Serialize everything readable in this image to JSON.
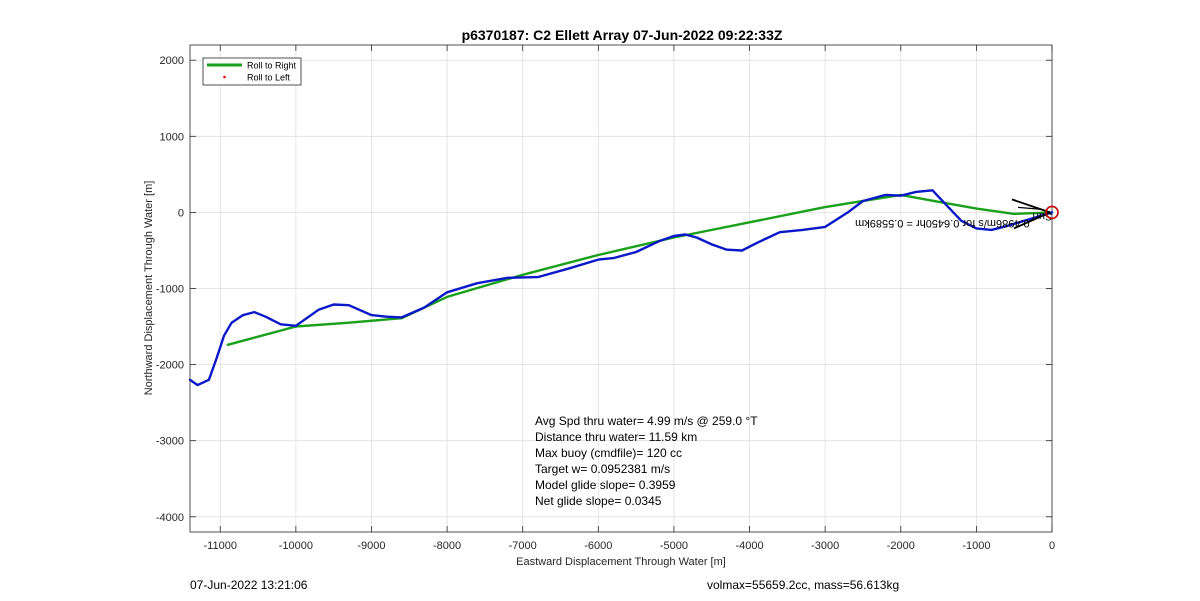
{
  "chart_data": {
    "type": "line",
    "title": "p6370187: C2 Ellett Array 07-Jun-2022 09:22:33Z",
    "xlabel": "Eastward Displacement Through Water [m]",
    "ylabel": "Northward Displacement Through Water [m]",
    "xlim": [
      -11400,
      0
    ],
    "ylim": [
      -4200,
      2200
    ],
    "xticks": [
      -11000,
      -10000,
      -9000,
      -8000,
      -7000,
      -6000,
      -5000,
      -4000,
      -3000,
      -2000,
      -1000,
      0
    ],
    "yticks": [
      -4000,
      -3000,
      -2000,
      -1000,
      0,
      1000,
      2000
    ],
    "grid": true,
    "legend_position": "top-left",
    "series": [
      {
        "name": "Roll to Right",
        "color": "#1aa01a",
        "x": [
          0,
          -500,
          -1000,
          -1500,
          -2000,
          -3000,
          -4000,
          -5000,
          -6000,
          -7000,
          -8000,
          -8600,
          -9300,
          -10000,
          -10900
        ],
        "y": [
          0,
          -20,
          50,
          140,
          230,
          70,
          -130,
          -330,
          -560,
          -820,
          -1110,
          -1390,
          -1450,
          -1500,
          -1740
        ]
      },
      {
        "name": "Roll to Left",
        "color": "#ff0000",
        "x": [],
        "y": []
      },
      {
        "name": "",
        "color": "#0a18c8",
        "x": [
          0,
          -300,
          -600,
          -800,
          -1000,
          -1200,
          -1400,
          -1580,
          -1800,
          -2000,
          -2200,
          -2500,
          -2700,
          -3000,
          -3300,
          -3600,
          -3900,
          -4100,
          -4300,
          -4500,
          -4700,
          -4850,
          -5000,
          -5200,
          -5500,
          -5800,
          -6000,
          -6400,
          -6800,
          -7200,
          -7600,
          -8000,
          -8300,
          -8600,
          -8800,
          -9000,
          -9300,
          -9500,
          -9700,
          -10000,
          -10200,
          -10400,
          -10550,
          -10700,
          -10850,
          -10950,
          -11050,
          -11150,
          -11300,
          -11400
        ],
        "y": [
          0,
          -90,
          -180,
          -230,
          -210,
          -110,
          100,
          290,
          270,
          220,
          230,
          150,
          0,
          -190,
          -230,
          -260,
          -400,
          -500,
          -490,
          -420,
          -330,
          -290,
          -310,
          -380,
          -520,
          -600,
          -620,
          -740,
          -850,
          -860,
          -930,
          -1050,
          -1250,
          -1380,
          -1370,
          -1350,
          -1220,
          -1210,
          -1280,
          -1490,
          -1470,
          -1370,
          -1310,
          -1350,
          -1450,
          -1620,
          -1920,
          -2200,
          -2270,
          -2200
        ]
      }
    ],
    "annotations": [
      {
        "text": "0.4986m/s for 0.6450hr = 0.5589km",
        "x": -1450,
        "y": -100,
        "rotation_deg": 180
      },
      {
        "text": "Surf",
        "x": -130,
        "y": -5,
        "rotation_deg": 180
      }
    ],
    "start_marker": {
      "x": 0,
      "y": 0,
      "shape": "circle",
      "color": "#cc0000"
    }
  },
  "stats": [
    "Avg Spd thru water=  4.99 m/s @ 259.0 °T",
    "Distance thru water= 11.59 km",
    "Max buoy (cmdfile)= 120 cc",
    "Target w= 0.0952381 m/s",
    "Model glide slope= 0.3959",
    "Net glide slope= 0.0345"
  ],
  "footer": {
    "left": "07-Jun-2022 13:21:06",
    "right": "volmax=55659.2cc, mass=56.613kg"
  }
}
